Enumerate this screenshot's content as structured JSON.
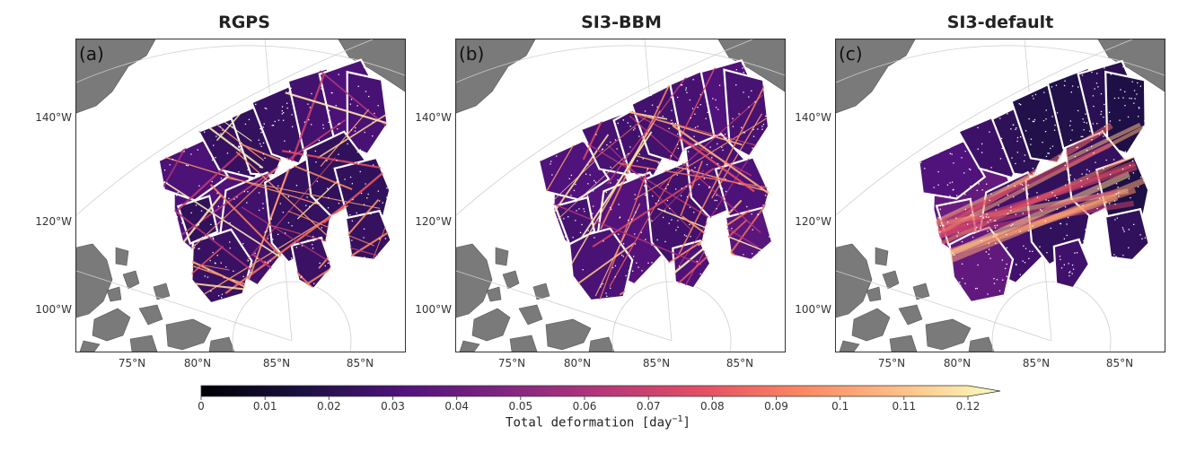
{
  "chart_data": {
    "type": "heatmap",
    "colormap": "magma",
    "panels": [
      {
        "letter": "(a)",
        "title": "RGPS"
      },
      {
        "letter": "(b)",
        "title": "SI3-BBM"
      },
      {
        "letter": "(c)",
        "title": "SI3-default"
      }
    ],
    "lon_labels": [
      "140°W",
      "120°W",
      "100°W"
    ],
    "lat_labels": [
      "75°N",
      "80°N",
      "85°N",
      "85°N"
    ],
    "colorbar": {
      "label_text": "Total deformation [day",
      "label_unit_exponent": "−1",
      "label_close": "]",
      "min": 0,
      "max": 0.12,
      "extend": "max",
      "ticks": [
        {
          "value": 0,
          "label": "0"
        },
        {
          "value": 0.01,
          "label": "0.01"
        },
        {
          "value": 0.02,
          "label": "0.02"
        },
        {
          "value": 0.03,
          "label": "0.03"
        },
        {
          "value": 0.04,
          "label": "0.04"
        },
        {
          "value": 0.05,
          "label": "0.05"
        },
        {
          "value": 0.06,
          "label": "0.06"
        },
        {
          "value": 0.07,
          "label": "0.07"
        },
        {
          "value": 0.08,
          "label": "0.08"
        },
        {
          "value": 0.09,
          "label": "0.09"
        },
        {
          "value": 0.1,
          "label": "0.1"
        },
        {
          "value": 0.11,
          "label": "0.11"
        },
        {
          "value": 0.12,
          "label": "0.12"
        }
      ]
    },
    "colors": {
      "land": "#7a7a7a",
      "ocean": "#ffffff",
      "grid": "#cfcfcf"
    }
  }
}
